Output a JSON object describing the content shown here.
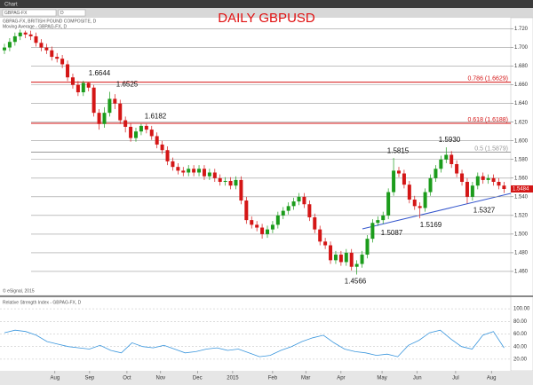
{
  "window": {
    "title": "Chart",
    "symbol": "GBPAG-FX",
    "interval": "D"
  },
  "chart_data": {
    "type": "candlestick",
    "title": "DAILY GBPUSD",
    "legend": [
      "GBPAG-FX, BRITISH POUND COMPOSITE, D",
      "Moving Average - GBPAG-FX, D"
    ],
    "copyright": "© eSignal, 2015",
    "open": [
      1.697,
      1.7,
      1.706,
      1.712,
      1.716,
      1.714,
      1.712,
      1.705,
      1.7,
      1.697,
      1.69,
      1.688,
      1.682,
      1.668,
      1.66,
      1.652,
      1.662,
      1.657,
      1.63,
      1.618,
      1.63,
      1.645,
      1.64,
      1.622,
      1.615,
      1.603,
      1.61,
      1.616,
      1.612,
      1.605,
      1.596,
      1.59,
      1.578,
      1.572,
      1.568,
      1.566,
      1.57,
      1.566,
      1.57,
      1.562,
      1.566,
      1.56,
      1.556,
      1.557,
      1.552,
      1.558,
      1.536,
      1.515,
      1.51,
      1.507,
      1.5,
      1.505,
      1.51,
      1.52,
      1.525,
      1.53,
      1.535,
      1.54,
      1.532,
      1.518,
      1.505,
      1.492,
      1.488,
      1.472,
      1.478,
      1.47,
      1.48,
      1.465,
      1.468,
      1.478,
      1.495,
      1.512,
      1.515,
      1.52,
      1.545,
      1.568,
      1.565,
      1.553,
      1.537,
      1.53,
      1.528,
      1.545,
      1.56,
      1.57,
      1.58,
      1.585,
      1.575,
      1.565,
      1.556,
      1.54,
      1.552,
      1.562,
      1.558,
      1.56,
      1.556,
      1.552
    ],
    "high": [
      1.704,
      1.71,
      1.716,
      1.7192,
      1.718,
      1.718,
      1.716,
      1.709,
      1.704,
      1.701,
      1.694,
      1.692,
      1.686,
      1.672,
      1.664,
      1.6644,
      1.663,
      1.66,
      1.634,
      1.636,
      1.6525,
      1.65,
      1.644,
      1.626,
      1.619,
      1.614,
      1.6182,
      1.618,
      1.616,
      1.609,
      1.6,
      1.594,
      1.582,
      1.576,
      1.572,
      1.574,
      1.574,
      1.574,
      1.574,
      1.57,
      1.57,
      1.564,
      1.561,
      1.561,
      1.562,
      1.562,
      1.54,
      1.519,
      1.514,
      1.511,
      1.509,
      1.514,
      1.524,
      1.529,
      1.534,
      1.539,
      1.544,
      1.544,
      1.536,
      1.522,
      1.509,
      1.496,
      1.492,
      1.482,
      1.482,
      1.484,
      1.484,
      1.472,
      1.482,
      1.499,
      1.516,
      1.519,
      1.524,
      1.549,
      1.5815,
      1.572,
      1.569,
      1.557,
      1.541,
      1.534,
      1.549,
      1.564,
      1.574,
      1.584,
      1.593,
      1.589,
      1.579,
      1.569,
      1.56,
      1.556,
      1.566,
      1.566,
      1.564,
      1.564,
      1.56,
      1.556
    ],
    "low": [
      1.693,
      1.696,
      1.702,
      1.708,
      1.71,
      1.708,
      1.701,
      1.696,
      1.693,
      1.686,
      1.684,
      1.678,
      1.664,
      1.656,
      1.648,
      1.648,
      1.653,
      1.626,
      1.612,
      1.614,
      1.626,
      1.634,
      1.618,
      1.609,
      1.599,
      1.599,
      1.606,
      1.608,
      1.601,
      1.592,
      1.586,
      1.574,
      1.568,
      1.564,
      1.562,
      1.562,
      1.562,
      1.562,
      1.558,
      1.558,
      1.556,
      1.552,
      1.552,
      1.548,
      1.548,
      1.532,
      1.511,
      1.506,
      1.503,
      1.4952,
      1.496,
      1.501,
      1.506,
      1.516,
      1.521,
      1.526,
      1.531,
      1.528,
      1.514,
      1.501,
      1.488,
      1.484,
      1.468,
      1.468,
      1.466,
      1.466,
      1.461,
      1.4566,
      1.464,
      1.474,
      1.491,
      1.5087,
      1.511,
      1.516,
      1.541,
      1.561,
      1.549,
      1.533,
      1.526,
      1.5169,
      1.524,
      1.541,
      1.556,
      1.566,
      1.576,
      1.571,
      1.561,
      1.552,
      1.5327,
      1.536,
      1.548,
      1.554,
      1.554,
      1.552,
      1.548,
      1.544
    ],
    "close": [
      1.7,
      1.706,
      1.712,
      1.716,
      1.714,
      1.712,
      1.705,
      1.7,
      1.697,
      1.69,
      1.688,
      1.682,
      1.668,
      1.66,
      1.652,
      1.662,
      1.657,
      1.63,
      1.618,
      1.63,
      1.645,
      1.64,
      1.622,
      1.615,
      1.603,
      1.61,
      1.616,
      1.612,
      1.605,
      1.596,
      1.59,
      1.578,
      1.572,
      1.568,
      1.566,
      1.57,
      1.566,
      1.57,
      1.562,
      1.566,
      1.56,
      1.556,
      1.557,
      1.552,
      1.558,
      1.536,
      1.515,
      1.51,
      1.507,
      1.5,
      1.505,
      1.51,
      1.52,
      1.525,
      1.53,
      1.535,
      1.54,
      1.532,
      1.518,
      1.505,
      1.492,
      1.488,
      1.472,
      1.478,
      1.47,
      1.48,
      1.465,
      1.468,
      1.478,
      1.495,
      1.512,
      1.515,
      1.52,
      1.545,
      1.568,
      1.565,
      1.553,
      1.537,
      1.53,
      1.528,
      1.545,
      1.56,
      1.57,
      1.58,
      1.585,
      1.575,
      1.565,
      1.556,
      1.54,
      1.552,
      1.562,
      1.558,
      1.56,
      1.556,
      1.552,
      1.5484
    ],
    "up_color": "#1c9c1c",
    "down_color": "#d41616",
    "ylim": [
      1.44,
      1.73
    ],
    "yticks": [
      {
        "value": 1.46,
        "label": "1.460"
      },
      {
        "value": 1.48,
        "label": "1.480"
      },
      {
        "value": 1.5,
        "label": "1.500"
      },
      {
        "value": 1.52,
        "label": "1.520"
      },
      {
        "value": 1.54,
        "label": "1.540"
      },
      {
        "value": 1.56,
        "label": "1.560"
      },
      {
        "value": 1.58,
        "label": "1.580"
      },
      {
        "value": 1.6,
        "label": "1.600"
      },
      {
        "value": 1.62,
        "label": "1.620"
      },
      {
        "value": 1.64,
        "label": "1.640"
      },
      {
        "value": 1.66,
        "label": "1.660"
      },
      {
        "value": 1.68,
        "label": "1.680"
      },
      {
        "value": 1.7,
        "label": "1.700"
      },
      {
        "value": 1.72,
        "label": "1.720"
      }
    ],
    "xticks": [
      {
        "value": 9.6,
        "label": "Aug"
      },
      {
        "value": 16.2,
        "label": "Sep"
      },
      {
        "value": 23.3,
        "label": "Oct"
      },
      {
        "value": 29.7,
        "label": "Nov"
      },
      {
        "value": 36.7,
        "label": "Dec"
      },
      {
        "value": 43.4,
        "label": "2015"
      },
      {
        "value": 51,
        "label": "Feb"
      },
      {
        "value": 57.3,
        "label": "Mar"
      },
      {
        "value": 64,
        "label": "Apr"
      },
      {
        "value": 71.8,
        "label": "May"
      },
      {
        "value": 78.5,
        "label": "Jun"
      },
      {
        "value": 85.8,
        "label": "Jul"
      },
      {
        "value": 92.6,
        "label": "Aug"
      }
    ],
    "grid": true,
    "levels": [
      {
        "value": 1.6629,
        "label": "0.786 (1.6629)",
        "color": "#d41616"
      },
      {
        "value": 1.6188,
        "label": "0.618 (1.6188)",
        "color": "#d41616"
      },
      {
        "value": 1.5879,
        "label": "0.5 (1.5879)",
        "color": "#999999"
      }
    ],
    "price_labels": [
      {
        "value": 1.6644,
        "label": "1.6644"
      },
      {
        "value": 1.6525,
        "label": "1.6525"
      },
      {
        "value": 1.6182,
        "label": "1.6182"
      },
      {
        "value": 1.5815,
        "label": "1.5815"
      },
      {
        "value": 1.593,
        "label": "1.5930"
      },
      {
        "value": 1.5087,
        "label": "1.5087"
      },
      {
        "value": 1.5169,
        "label": "1.5169"
      },
      {
        "value": 1.5327,
        "label": "1.5327"
      },
      {
        "value": 1.4566,
        "label": "1.4566"
      }
    ],
    "rsi": {
      "title": "Relative Strength Index - GBPAG-FX, D",
      "values": [
        62,
        66,
        64,
        58,
        48,
        44,
        40,
        38,
        36,
        42,
        34,
        30,
        46,
        40,
        38,
        42,
        36,
        30,
        32,
        36,
        38,
        34,
        36,
        30,
        24,
        26,
        34,
        40,
        48,
        54,
        58,
        46,
        36,
        32,
        30,
        26,
        28,
        24,
        42,
        50,
        62,
        66,
        52,
        40,
        36,
        58,
        64,
        38
      ],
      "color": "#3a96dd",
      "ylim": [
        10,
        110
      ],
      "yticks": [
        {
          "value": 20,
          "label": "20.00"
        },
        {
          "value": 40,
          "label": "40.00"
        },
        {
          "value": 60,
          "label": "60.00"
        },
        {
          "value": 80,
          "label": "80.00"
        },
        {
          "value": 100,
          "label": "100.00"
        }
      ]
    }
  }
}
